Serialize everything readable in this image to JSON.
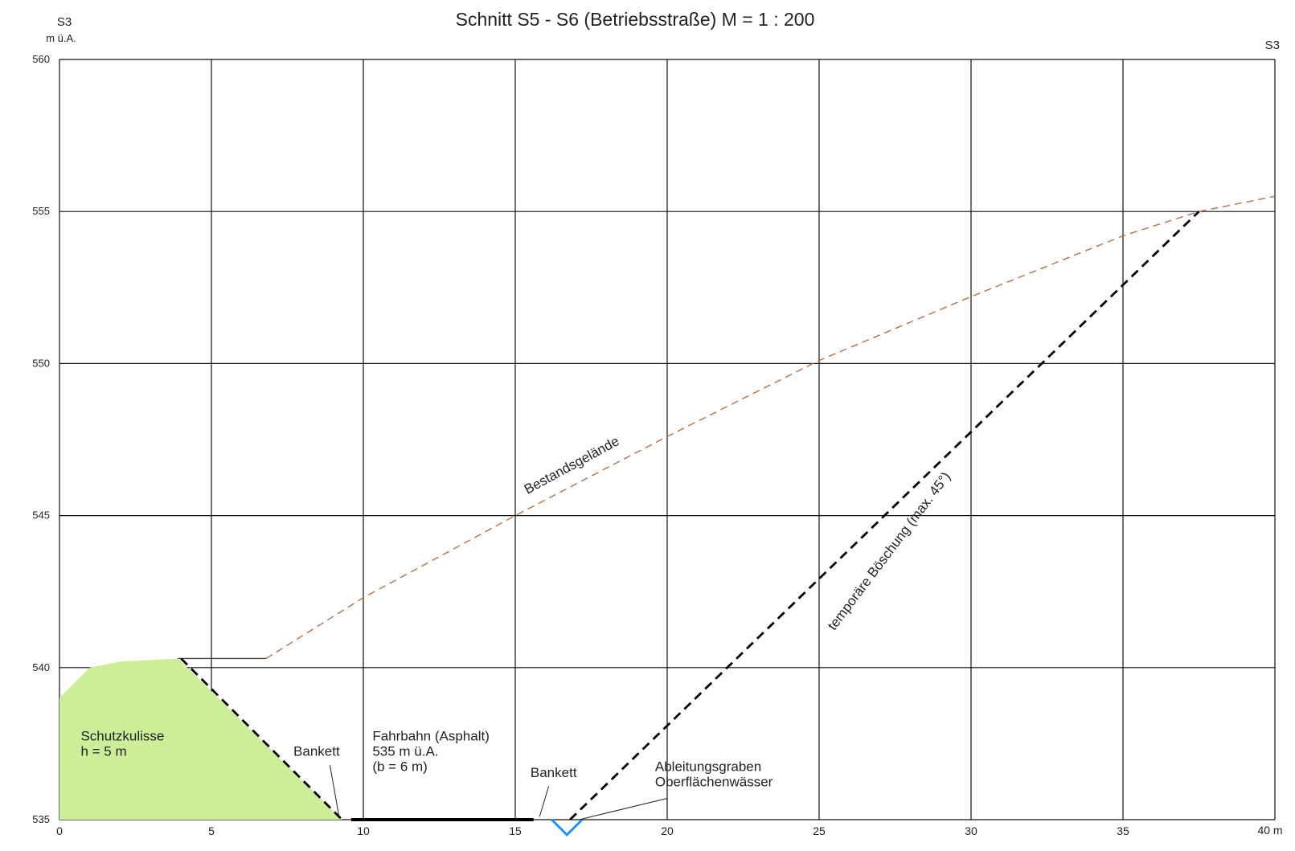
{
  "chart_data": {
    "type": "line",
    "title": "Schnitt S5 - S6 (Betriebsstraße) M = 1 : 200",
    "y_label_station": "S3",
    "y_unit": "m ü.A.",
    "right_label": "S3",
    "x_unit_label": "40 m",
    "xlim": [
      0,
      40
    ],
    "ylim": [
      535,
      560
    ],
    "grid": true,
    "x_ticks": [
      {
        "value": 0,
        "label": "0"
      },
      {
        "value": 5,
        "label": "5"
      },
      {
        "value": 10,
        "label": "10"
      },
      {
        "value": 15,
        "label": "15"
      },
      {
        "value": 20,
        "label": "20"
      },
      {
        "value": 25,
        "label": "25"
      },
      {
        "value": 30,
        "label": "30"
      },
      {
        "value": 35,
        "label": "35"
      }
    ],
    "y_ticks": [
      {
        "value": 535,
        "label": "535"
      },
      {
        "value": 540,
        "label": "540"
      },
      {
        "value": 545,
        "label": "545"
      },
      {
        "value": 550,
        "label": "550"
      },
      {
        "value": 555,
        "label": "555"
      },
      {
        "value": 560,
        "label": "560"
      }
    ],
    "series": [
      {
        "name": "Bestandsgelände",
        "color": "#b5714a",
        "style": "dashed",
        "x": [
          6.8,
          10,
          15,
          20,
          25,
          30,
          35,
          37.5,
          40
        ],
        "y": [
          540.3,
          542.3,
          545.0,
          547.6,
          550.1,
          552.2,
          554.2,
          555.0,
          555.5
        ]
      },
      {
        "name": "temporäre Böschung (max. 45°)",
        "color": "#000000",
        "style": "dashed-bold",
        "x": [
          16.8,
          37.5
        ],
        "y": [
          535.0,
          555.0
        ]
      },
      {
        "name": "Schutzkulisse Böschung",
        "color": "#000000",
        "style": "dashed-bold",
        "x": [
          4.0,
          9.3
        ],
        "y": [
          540.3,
          535.0
        ]
      }
    ],
    "areas": [
      {
        "name": "Schutzkulisse",
        "color": "#ccee99",
        "x": [
          0,
          0,
          1.0,
          2.0,
          3.9,
          9.3
        ],
        "y": [
          535,
          539.0,
          540.0,
          540.2,
          540.3,
          535
        ]
      }
    ],
    "lines": [
      {
        "name": "plateau",
        "color": "#444444",
        "x": [
          3.9,
          6.8
        ],
        "y": [
          540.3,
          540.3
        ]
      },
      {
        "name": "Fahrbahn",
        "color": "#000000",
        "x": [
          9.6,
          15.6
        ],
        "y": [
          535.0,
          535.0
        ]
      }
    ],
    "ditch": {
      "color": "#1e90ff",
      "x": [
        16.2,
        16.7,
        17.2
      ],
      "y": [
        535.0,
        534.5,
        535.0
      ]
    },
    "annotations": [
      {
        "name": "schutzkulisse",
        "lines": [
          "Schutzkulisse",
          "h = 5 m"
        ],
        "x": 0.7,
        "y": 537.6
      },
      {
        "name": "bankett-left",
        "lines": [
          "Bankett"
        ],
        "x": 7.7,
        "y": 537.1,
        "leader": [
          [
            8.9,
            536.8
          ],
          [
            9.2,
            535.1
          ]
        ]
      },
      {
        "name": "fahrbahn",
        "lines": [
          "Fahrbahn (Asphalt)",
          "535 m ü.A.",
          "(b = 6 m)"
        ],
        "x": 10.3,
        "y": 537.6
      },
      {
        "name": "bankett-right",
        "lines": [
          "Bankett"
        ],
        "x": 15.5,
        "y": 536.4,
        "leader": [
          [
            16.1,
            536.1
          ],
          [
            15.8,
            535.1
          ]
        ]
      },
      {
        "name": "ableitungsgraben",
        "lines": [
          "Ableitungsgraben",
          "Oberflächenwässer"
        ],
        "x": 19.6,
        "y": 536.6,
        "leader": [
          [
            20.0,
            535.7
          ],
          [
            17.1,
            535.0
          ]
        ]
      },
      {
        "name": "bestandsgelaende",
        "lines": [
          "Bestandsgelände"
        ],
        "x": 15.4,
        "y": 545.7,
        "angle": -28.5
      },
      {
        "name": "boeschung",
        "lines": [
          "temporäre Böschung (max. 45°)"
        ],
        "x": 25.5,
        "y": 541.2,
        "angle": -53
      }
    ]
  }
}
